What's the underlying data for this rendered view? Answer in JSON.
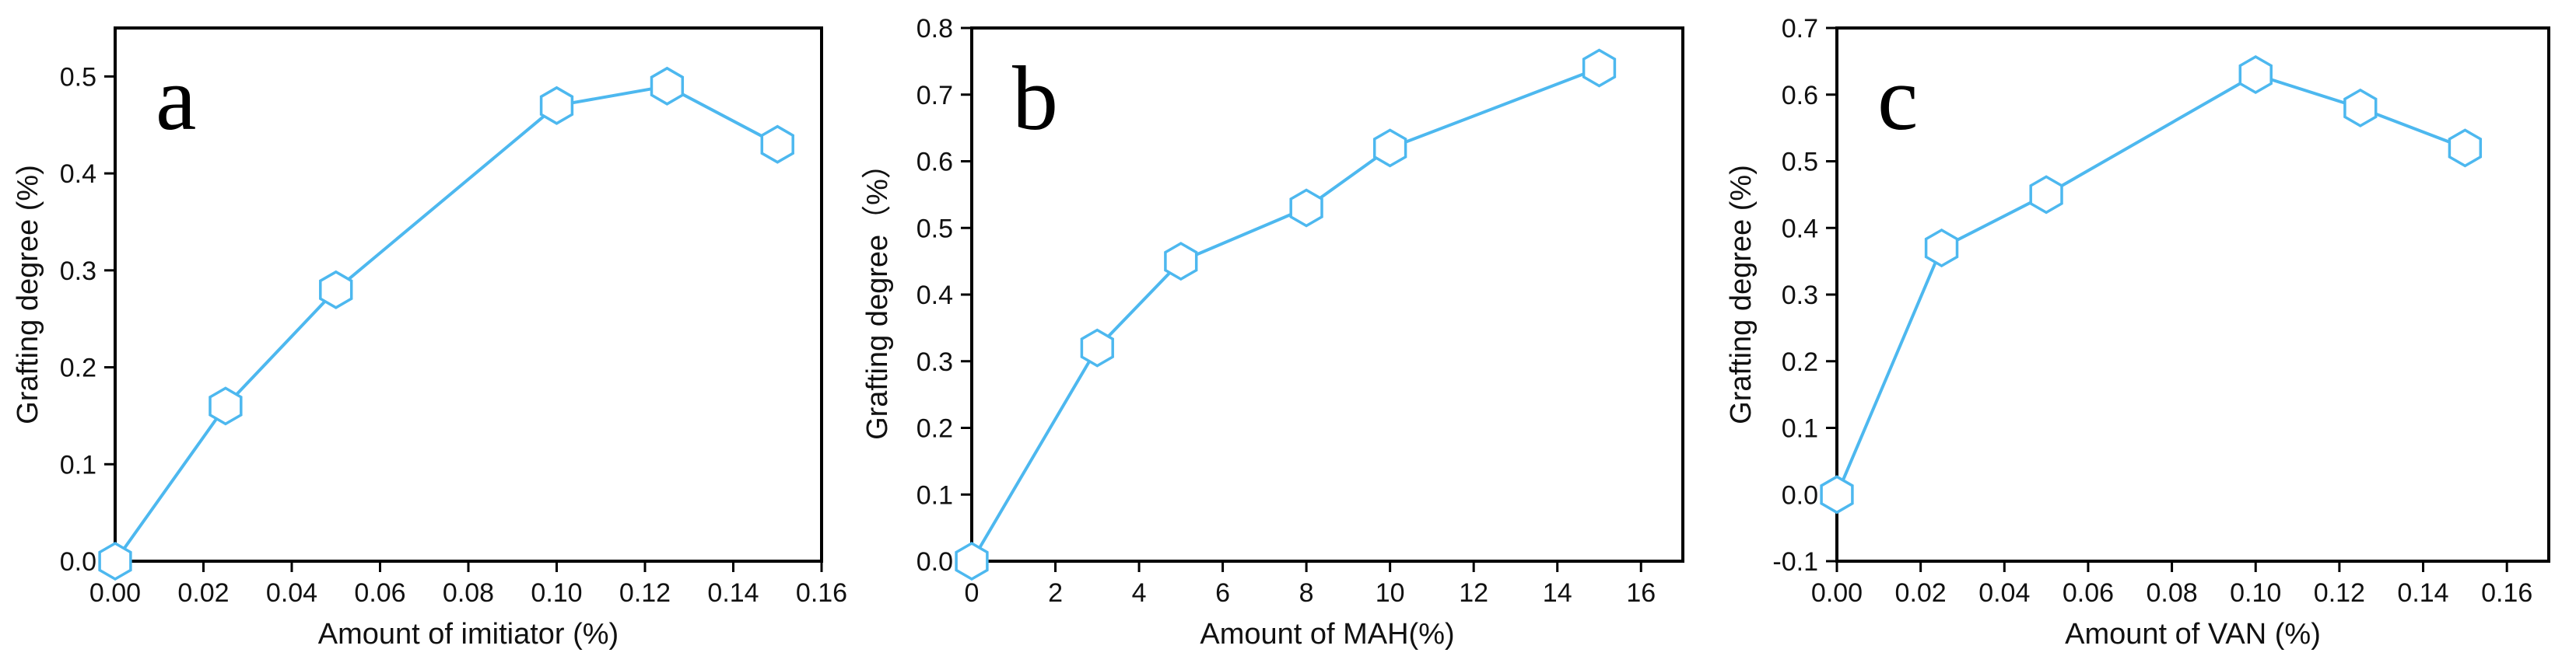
{
  "figure": {
    "line_color": "#4db8ef",
    "marker": "hexagon"
  },
  "chart_data": [
    {
      "type": "line",
      "panel": "a",
      "xlabel": "Amount of imitiator (%)",
      "ylabel": "Grafting degree (%)",
      "xlim": [
        0,
        0.16
      ],
      "ylim": [
        0,
        0.55
      ],
      "xticks": [
        0,
        0.02,
        0.04,
        0.06,
        0.08,
        0.1,
        0.12,
        0.14,
        0.16
      ],
      "xtick_labels": [
        "0.00",
        "0.02",
        "0.04",
        "0.06",
        "0.08",
        "0.10",
        "0.12",
        "0.14",
        "0.16"
      ],
      "yticks": [
        0,
        0.1,
        0.2,
        0.3,
        0.4,
        0.5
      ],
      "ytick_labels": [
        "0.0",
        "0.1",
        "0.2",
        "0.3",
        "0.4",
        "0.5"
      ],
      "series": [
        {
          "name": "Grafting degree",
          "x": [
            0,
            0.025,
            0.05,
            0.1,
            0.125,
            0.15
          ],
          "y": [
            0.0,
            0.16,
            0.28,
            0.47,
            0.49,
            0.43
          ]
        }
      ]
    },
    {
      "type": "line",
      "panel": "b",
      "xlabel": "Amount of MAH(%)",
      "ylabel": "Grafting degree（%）",
      "xlim": [
        0,
        17
      ],
      "ylim": [
        0,
        0.8
      ],
      "xticks": [
        0,
        2,
        4,
        6,
        8,
        10,
        12,
        14,
        16
      ],
      "xtick_labels": [
        "0",
        "2",
        "4",
        "6",
        "8",
        "10",
        "12",
        "14",
        "16"
      ],
      "yticks": [
        0,
        0.1,
        0.2,
        0.3,
        0.4,
        0.5,
        0.6,
        0.7,
        0.8
      ],
      "ytick_labels": [
        "0.0",
        "0.1",
        "0.2",
        "0.3",
        "0.4",
        "0.5",
        "0.6",
        "0.7",
        "0.8"
      ],
      "series": [
        {
          "name": "Grafting degree",
          "x": [
            0,
            3,
            5,
            8,
            10,
            15
          ],
          "y": [
            0.0,
            0.32,
            0.45,
            0.53,
            0.62,
            0.74
          ]
        }
      ]
    },
    {
      "type": "line",
      "panel": "c",
      "xlabel": "Amount of  VAN (%)",
      "ylabel": "Grafting degree (%)",
      "xlim": [
        0,
        0.17
      ],
      "ylim": [
        -0.1,
        0.7
      ],
      "xticks": [
        0,
        0.02,
        0.04,
        0.06,
        0.08,
        0.1,
        0.12,
        0.14,
        0.16
      ],
      "xtick_labels": [
        "0.00",
        "0.02",
        "0.04",
        "0.06",
        "0.08",
        "0.10",
        "0.12",
        "0.14",
        "0.16"
      ],
      "yticks": [
        -0.1,
        0,
        0.1,
        0.2,
        0.3,
        0.4,
        0.5,
        0.6,
        0.7
      ],
      "ytick_labels": [
        "-0.1",
        "0.0",
        "0.1",
        "0.2",
        "0.3",
        "0.4",
        "0.5",
        "0.6",
        "0.7"
      ],
      "series": [
        {
          "name": "Grafting degree",
          "x": [
            0,
            0.025,
            0.05,
            0.1,
            0.125,
            0.15
          ],
          "y": [
            0.0,
            0.37,
            0.45,
            0.63,
            0.58,
            0.52
          ]
        }
      ]
    }
  ]
}
